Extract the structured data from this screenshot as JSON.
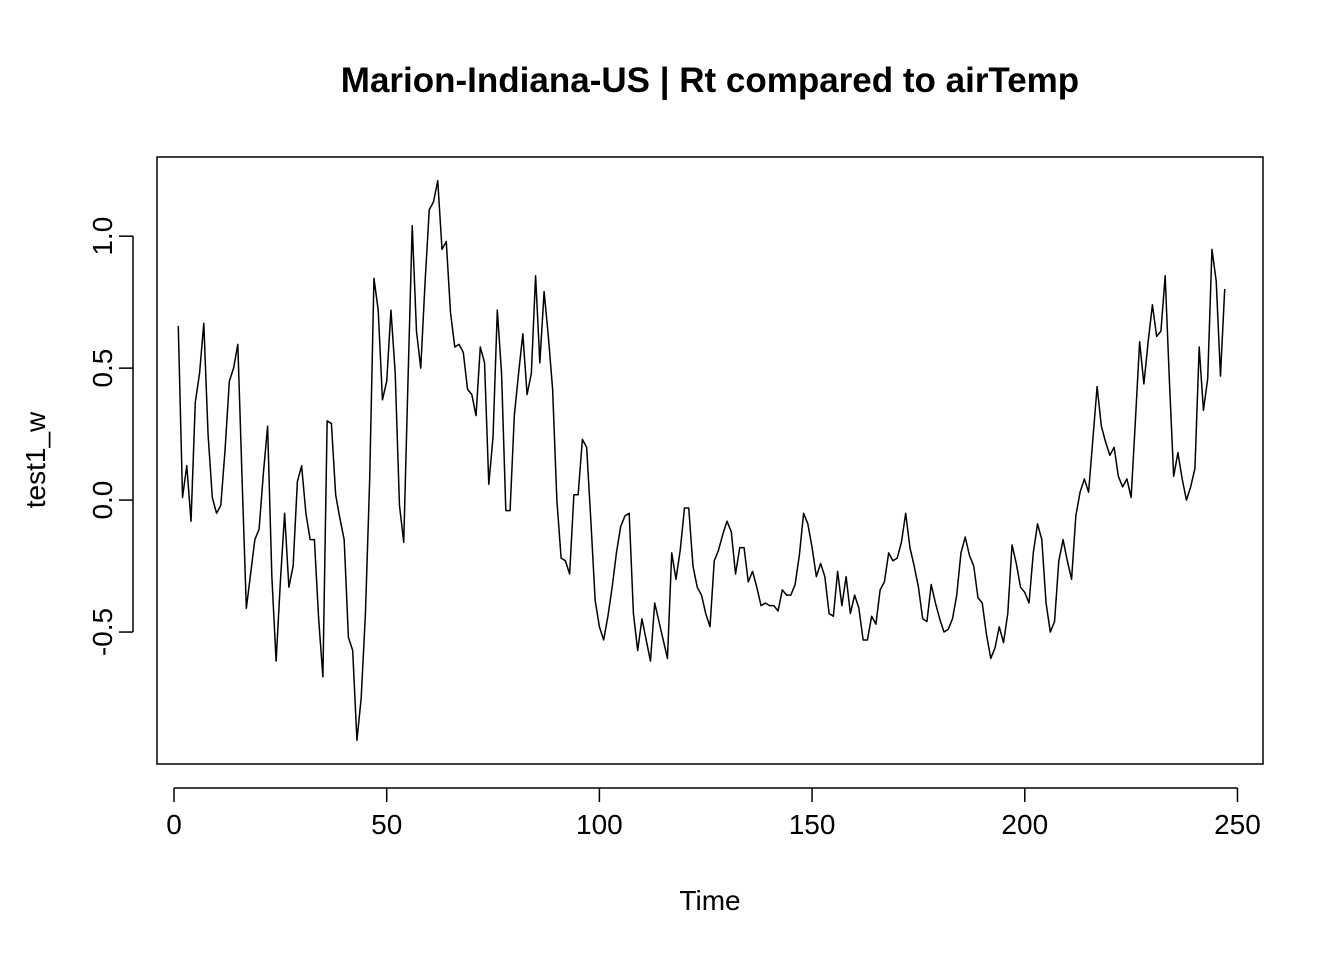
{
  "chart_data": {
    "type": "line",
    "title": "Marion-Indiana-US | Rt compared to airTemp",
    "xlabel": "Time",
    "ylabel": "test1_w",
    "xlim": [
      -4,
      256
    ],
    "ylim": [
      -1.0,
      1.3
    ],
    "x_ticks": [
      0,
      50,
      100,
      150,
      200,
      250
    ],
    "x_tick_labels": [
      "0",
      "50",
      "100",
      "150",
      "200",
      "250"
    ],
    "y_ticks": [
      -0.5,
      0.0,
      0.5,
      1.0
    ],
    "y_tick_labels": [
      "-0.5",
      "0.0",
      "0.5",
      "1.0"
    ],
    "grid": false,
    "legend": "none",
    "series": [
      {
        "color": "#000000",
        "x_start": 1,
        "values": [
          0.66,
          0.01,
          0.13,
          -0.08,
          0.37,
          0.48,
          0.67,
          0.25,
          0.01,
          -0.05,
          -0.02,
          0.19,
          0.45,
          0.5,
          0.59,
          0.08,
          -0.41,
          -0.28,
          -0.15,
          -0.11,
          0.1,
          0.28,
          -0.29,
          -0.61,
          -0.31,
          -0.05,
          -0.33,
          -0.25,
          0.07,
          0.13,
          -0.05,
          -0.15,
          -0.15,
          -0.45,
          -0.67,
          0.3,
          0.29,
          0.02,
          -0.07,
          -0.15,
          -0.52,
          -0.57,
          -0.91,
          -0.75,
          -0.43,
          0.08,
          0.84,
          0.72,
          0.38,
          0.45,
          0.72,
          0.48,
          -0.02,
          -0.16,
          0.45,
          1.04,
          0.64,
          0.5,
          0.82,
          1.1,
          1.13,
          1.21,
          0.95,
          0.98,
          0.71,
          0.58,
          0.59,
          0.56,
          0.42,
          0.4,
          0.32,
          0.58,
          0.52,
          0.06,
          0.24,
          0.72,
          0.48,
          -0.04,
          -0.04,
          0.32,
          0.48,
          0.63,
          0.4,
          0.48,
          0.85,
          0.52,
          0.79,
          0.62,
          0.42,
          0.0,
          -0.22,
          -0.23,
          -0.28,
          0.02,
          0.02,
          0.23,
          0.2,
          -0.08,
          -0.38,
          -0.48,
          -0.53,
          -0.44,
          -0.33,
          -0.2,
          -0.1,
          -0.06,
          -0.05,
          -0.43,
          -0.57,
          -0.45,
          -0.53,
          -0.61,
          -0.39,
          -0.46,
          -0.53,
          -0.6,
          -0.2,
          -0.3,
          -0.19,
          -0.03,
          -0.03,
          -0.25,
          -0.33,
          -0.36,
          -0.43,
          -0.48,
          -0.23,
          -0.19,
          -0.13,
          -0.08,
          -0.12,
          -0.28,
          -0.18,
          -0.18,
          -0.31,
          -0.27,
          -0.33,
          -0.4,
          -0.39,
          -0.4,
          -0.4,
          -0.42,
          -0.34,
          -0.36,
          -0.36,
          -0.32,
          -0.21,
          -0.05,
          -0.09,
          -0.18,
          -0.29,
          -0.24,
          -0.29,
          -0.43,
          -0.44,
          -0.27,
          -0.4,
          -0.29,
          -0.43,
          -0.36,
          -0.41,
          -0.53,
          -0.53,
          -0.44,
          -0.47,
          -0.34,
          -0.31,
          -0.2,
          -0.23,
          -0.22,
          -0.16,
          -0.05,
          -0.18,
          -0.25,
          -0.33,
          -0.45,
          -0.46,
          -0.32,
          -0.39,
          -0.45,
          -0.5,
          -0.49,
          -0.45,
          -0.36,
          -0.2,
          -0.14,
          -0.21,
          -0.25,
          -0.37,
          -0.39,
          -0.51,
          -0.6,
          -0.56,
          -0.48,
          -0.54,
          -0.43,
          -0.17,
          -0.24,
          -0.33,
          -0.35,
          -0.39,
          -0.2,
          -0.09,
          -0.15,
          -0.39,
          -0.5,
          -0.46,
          -0.23,
          -0.15,
          -0.23,
          -0.3,
          -0.06,
          0.03,
          0.08,
          0.03,
          0.23,
          0.43,
          0.28,
          0.22,
          0.17,
          0.2,
          0.09,
          0.05,
          0.08,
          0.01,
          0.3,
          0.6,
          0.44,
          0.6,
          0.74,
          0.62,
          0.64,
          0.85,
          0.45,
          0.09,
          0.18,
          0.08,
          0.0,
          0.05,
          0.12,
          0.58,
          0.34,
          0.46,
          0.95,
          0.83,
          0.47,
          0.8
        ]
      }
    ]
  }
}
